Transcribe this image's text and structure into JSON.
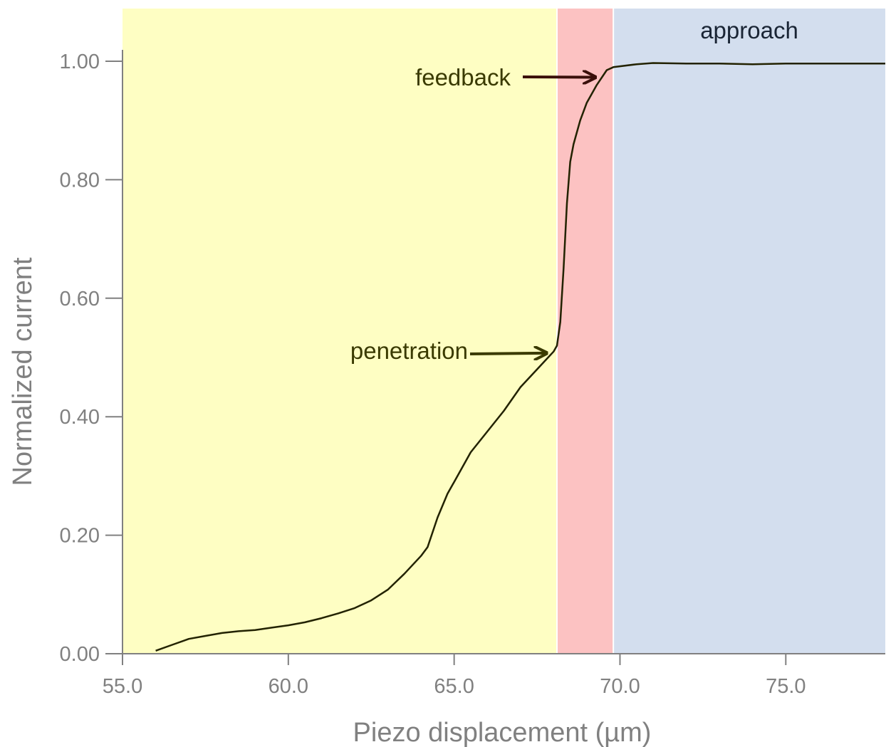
{
  "chart_data": {
    "type": "line",
    "title": "",
    "xlabel": "Piezo displacement (µm)",
    "ylabel": "Normalized current",
    "xlim": [
      55.0,
      78.0
    ],
    "ylim": [
      0.0,
      1.0
    ],
    "x_ticks": [
      "55.0",
      "60.0",
      "65.0",
      "70.0",
      "75.0"
    ],
    "x_tick_values": [
      55.0,
      60.0,
      65.0,
      70.0,
      75.0
    ],
    "y_ticks": [
      "0.00",
      "0.20",
      "0.40",
      "0.60",
      "0.80",
      "1.00"
    ],
    "y_tick_values": [
      0.0,
      0.2,
      0.4,
      0.6,
      0.8,
      1.0
    ],
    "grid": false,
    "regions": [
      {
        "x_start": 55.0,
        "x_end": 68.1,
        "color": "#fefec3"
      },
      {
        "x_start": 68.1,
        "x_end": 69.8,
        "color": "#fcc2c2"
      },
      {
        "x_start": 69.8,
        "x_end": 78.0,
        "color": "#d3deee",
        "label": "approach"
      }
    ],
    "series": [
      {
        "color": "#222200",
        "points": [
          [
            56.0,
            0.005
          ],
          [
            56.5,
            0.015
          ],
          [
            57.0,
            0.025
          ],
          [
            57.5,
            0.03
          ],
          [
            58.0,
            0.035
          ],
          [
            58.5,
            0.038
          ],
          [
            59.0,
            0.04
          ],
          [
            59.5,
            0.044
          ],
          [
            60.0,
            0.048
          ],
          [
            60.5,
            0.053
          ],
          [
            61.0,
            0.06
          ],
          [
            61.5,
            0.068
          ],
          [
            62.0,
            0.077
          ],
          [
            62.5,
            0.09
          ],
          [
            63.0,
            0.108
          ],
          [
            63.5,
            0.135
          ],
          [
            64.0,
            0.165
          ],
          [
            64.2,
            0.18
          ],
          [
            64.5,
            0.23
          ],
          [
            64.8,
            0.27
          ],
          [
            65.0,
            0.29
          ],
          [
            65.5,
            0.34
          ],
          [
            66.0,
            0.375
          ],
          [
            66.5,
            0.41
          ],
          [
            67.0,
            0.45
          ],
          [
            67.5,
            0.48
          ],
          [
            68.0,
            0.51
          ],
          [
            68.1,
            0.52
          ],
          [
            68.2,
            0.56
          ],
          [
            68.3,
            0.65
          ],
          [
            68.4,
            0.76
          ],
          [
            68.5,
            0.83
          ],
          [
            68.6,
            0.86
          ],
          [
            68.8,
            0.9
          ],
          [
            69.0,
            0.93
          ],
          [
            69.3,
            0.96
          ],
          [
            69.6,
            0.985
          ],
          [
            69.8,
            0.99
          ],
          [
            70.5,
            0.995
          ],
          [
            71.0,
            0.997
          ],
          [
            72.0,
            0.996
          ],
          [
            73.0,
            0.996
          ],
          [
            74.0,
            0.995
          ],
          [
            75.0,
            0.996
          ],
          [
            76.0,
            0.996
          ],
          [
            77.0,
            0.996
          ],
          [
            78.0,
            0.996
          ]
        ]
      }
    ],
    "annotations": [
      {
        "text": "feedback",
        "target": [
          69.6,
          0.985
        ]
      },
      {
        "text": "penetration",
        "target": [
          67.7,
          0.505
        ]
      }
    ]
  },
  "colors": {
    "axis": "#808080",
    "arrow_feedback": "#3a0f0a",
    "arrow_penetration": "#3a3a00",
    "divider": "#ffffff"
  }
}
